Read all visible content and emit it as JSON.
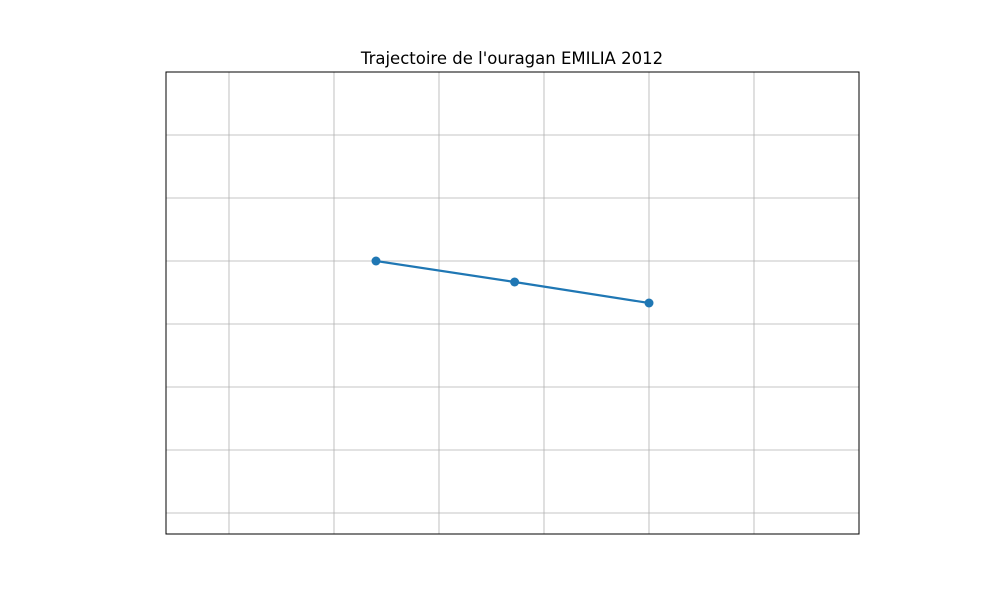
{
  "chart_data": {
    "type": "line",
    "title": "Trajectoire de l'ouragan EMILIA 2012",
    "xlabel": "",
    "ylabel": "",
    "xlim": [
      -126.3,
      -119.7
    ],
    "ylim": [
      12.33,
      14.53
    ],
    "grid": true,
    "x_gridlines": [
      -125.7,
      -124.7,
      -123.7,
      -122.7,
      -121.7,
      -120.7
    ],
    "y_gridlines": [
      12.43,
      12.73,
      13.03,
      13.33,
      13.63,
      13.93,
      14.23
    ],
    "series": [
      {
        "x": [
          -124.3,
          -122.98,
          -121.7
        ],
        "y": [
          13.63,
          13.53,
          13.43
        ]
      }
    ],
    "colors": {
      "series": "#1f77b4",
      "grid": "#b0b0b0",
      "axes": "#000000"
    }
  }
}
